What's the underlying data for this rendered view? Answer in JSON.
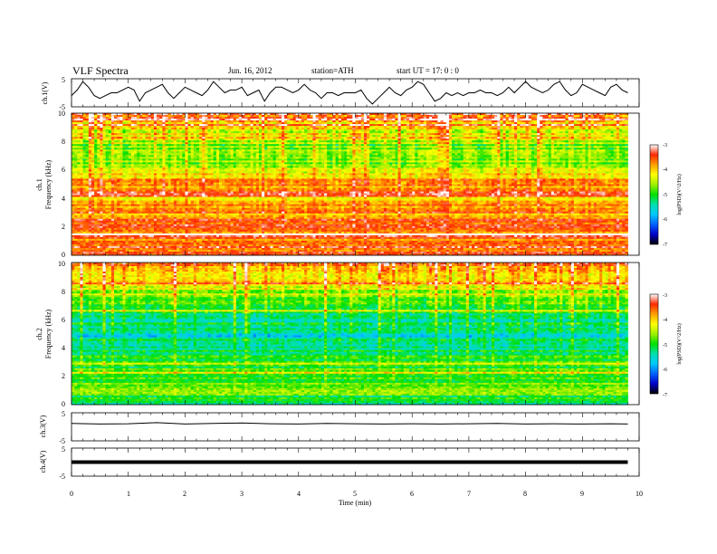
{
  "header": {
    "title": "VLF  Spectra",
    "date": "Jun. 16, 2012",
    "station": "station=ATH",
    "start": "start  UT  =    17: 0   : 0"
  },
  "chart_data": [
    {
      "type": "line",
      "id": "ch1",
      "ylabel": "ch.1(V)",
      "ylim": [
        -5,
        5
      ],
      "yticks": [
        "5",
        "-5"
      ],
      "xlim": [
        0,
        10
      ],
      "x": [
        0,
        0.1,
        0.2,
        0.3,
        0.4,
        0.5,
        0.6,
        0.7,
        0.8,
        0.9,
        1.0,
        1.1,
        1.2,
        1.3,
        1.4,
        1.5,
        1.6,
        1.7,
        1.8,
        1.9,
        2.0,
        2.1,
        2.2,
        2.3,
        2.4,
        2.5,
        2.6,
        2.7,
        2.8,
        2.9,
        3.0,
        3.1,
        3.2,
        3.3,
        3.4,
        3.5,
        3.6,
        3.7,
        3.8,
        3.9,
        4.0,
        4.1,
        4.2,
        4.3,
        4.4,
        4.5,
        4.6,
        4.7,
        4.8,
        4.9,
        5.0,
        5.1,
        5.2,
        5.3,
        5.4,
        5.5,
        5.6,
        5.7,
        5.8,
        5.9,
        6.0,
        6.1,
        6.2,
        6.3,
        6.4,
        6.5,
        6.6,
        6.7,
        6.8,
        6.9,
        7.0,
        7.1,
        7.2,
        7.3,
        7.4,
        7.5,
        7.6,
        7.7,
        7.8,
        7.9,
        8.0,
        8.1,
        8.2,
        8.3,
        8.4,
        8.5,
        8.6,
        8.7,
        8.8,
        8.9,
        9.0,
        9.1,
        9.2,
        9.3,
        9.4,
        9.5,
        9.6,
        9.7,
        9.8
      ],
      "values": [
        -1,
        1,
        4,
        2,
        -1,
        -2,
        -1,
        0,
        0,
        1,
        2,
        1,
        -3,
        0,
        1,
        2,
        3,
        0,
        -2,
        0,
        2,
        1,
        0,
        -1,
        1,
        4,
        2,
        0,
        1,
        1,
        2,
        -1,
        0,
        1,
        -3,
        0,
        2,
        2,
        1,
        0,
        1,
        3,
        1,
        0,
        -2,
        0,
        0,
        -1,
        0,
        0,
        0,
        1,
        -2,
        -4,
        -2,
        0,
        2,
        0,
        -1,
        1,
        2,
        4,
        3,
        0,
        -3,
        -2,
        0,
        -1,
        0,
        -1,
        0,
        0,
        1,
        0,
        0,
        -1,
        0,
        2,
        0,
        2,
        4,
        2,
        1,
        0,
        1,
        3,
        4,
        1,
        -1,
        0,
        3,
        2,
        1,
        0,
        -1,
        2,
        3,
        1,
        0
      ]
    },
    {
      "type": "heatmap",
      "id": "spec1",
      "ylabel": "Frequency  (kHz)",
      "channel": "ch.1",
      "ylim": [
        0,
        10
      ],
      "yticks": [
        "0",
        "2",
        "4",
        "6",
        "8",
        "10"
      ],
      "xlim": [
        0,
        10
      ],
      "colorbar": {
        "label": "log(PSD)(V^2/Hz)",
        "range": [
          -7,
          -3
        ],
        "ticks": [
          "-3",
          "-4",
          "-5",
          "-6",
          "-7"
        ]
      },
      "profile_freq_khz": [
        0,
        1,
        2,
        3,
        4,
        5,
        6,
        7,
        8,
        9,
        10
      ],
      "profile_logpsd": [
        -3.4,
        -3.6,
        -3.5,
        -3.8,
        -4.0,
        -3.6,
        -4.5,
        -4.8,
        -4.6,
        -4.1,
        -3.6
      ]
    },
    {
      "type": "heatmap",
      "id": "spec2",
      "ylabel": "Frequency  (kHz)",
      "channel": "ch.2",
      "ylim": [
        0,
        10
      ],
      "yticks": [
        "0",
        "2",
        "4",
        "6",
        "8",
        "10"
      ],
      "xlim": [
        0,
        10
      ],
      "colorbar": {
        "label": "log(PSD)(V^2/Hz)",
        "range": [
          -7,
          -3
        ],
        "ticks": [
          "-3",
          "-4",
          "-5",
          "-6",
          "-7"
        ]
      },
      "profile_freq_khz": [
        0,
        1,
        2,
        3,
        4,
        5,
        6,
        7,
        8,
        9,
        10
      ],
      "profile_logpsd": [
        -5.6,
        -4.5,
        -4.9,
        -5.0,
        -5.3,
        -5.5,
        -5.3,
        -4.8,
        -4.4,
        -3.9,
        -3.6
      ]
    },
    {
      "type": "line",
      "id": "ch3",
      "ylabel": "ch.3(V)",
      "ylim": [
        -5,
        5
      ],
      "yticks": [
        "5",
        "-5"
      ],
      "xlim": [
        0,
        10
      ],
      "x": [
        0,
        0.5,
        1,
        1.5,
        2,
        2.5,
        3,
        3.5,
        4,
        4.5,
        5,
        5.5,
        6,
        6.5,
        7,
        7.5,
        8,
        8.5,
        9,
        9.5,
        9.8
      ],
      "values": [
        1.2,
        1.0,
        1.1,
        1.5,
        1.0,
        1.2,
        1.4,
        1.1,
        1.0,
        1.2,
        1.1,
        1.0,
        1.1,
        1.0,
        1.1,
        1.2,
        1.0,
        1.1,
        1.0,
        1.1,
        1.0
      ]
    },
    {
      "type": "line",
      "id": "ch4",
      "ylabel": "ch.4(V)",
      "ylim": [
        -5,
        5
      ],
      "yticks": [
        "5",
        "-5"
      ],
      "xlim": [
        0,
        10
      ],
      "x": [
        0,
        1,
        2,
        3,
        4,
        5,
        6,
        7,
        8,
        9,
        9.8
      ],
      "values": [
        0,
        0,
        0,
        0,
        0,
        0,
        0,
        0,
        0,
        0,
        0
      ],
      "xlabel": "Time  (min)",
      "xticks": [
        "0",
        "1",
        "2",
        "3",
        "4",
        "5",
        "6",
        "7",
        "8",
        "9",
        "10"
      ]
    }
  ],
  "colors": {
    "trace": "#000000",
    "colormap": [
      "#000000",
      "#0000c8",
      "#0060ff",
      "#00c8ff",
      "#00e0b0",
      "#00e000",
      "#9ef000",
      "#ffff00",
      "#ffa000",
      "#ff2800",
      "#ffffff"
    ]
  }
}
